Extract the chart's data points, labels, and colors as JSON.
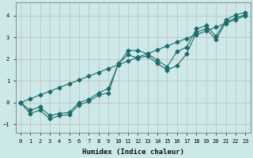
{
  "xlabel": "Humidex (Indice chaleur)",
  "xlim": [
    -0.5,
    23.5
  ],
  "ylim": [
    -1.4,
    4.6
  ],
  "yticks": [
    -1,
    0,
    1,
    2,
    3,
    4
  ],
  "xticks": [
    0,
    1,
    2,
    3,
    4,
    5,
    6,
    7,
    8,
    9,
    10,
    11,
    12,
    13,
    14,
    15,
    16,
    17,
    18,
    19,
    20,
    21,
    22,
    23
  ],
  "bg_color": "#cce8e8",
  "grid_color": "#b8cece",
  "line_color": "#1a6b6b",
  "x": [
    0,
    1,
    2,
    3,
    4,
    5,
    6,
    7,
    8,
    9,
    10,
    11,
    12,
    13,
    14,
    15,
    16,
    17,
    18,
    19,
    20,
    21,
    22,
    23
  ],
  "y_straight": [
    0.0,
    0.17,
    0.35,
    0.52,
    0.7,
    0.87,
    1.04,
    1.22,
    1.39,
    1.57,
    1.74,
    1.91,
    2.09,
    2.26,
    2.43,
    2.61,
    2.78,
    2.96,
    3.13,
    3.3,
    3.48,
    3.65,
    3.83,
    4.0
  ],
  "y_upper": [
    0.0,
    -0.35,
    -0.2,
    -0.6,
    -0.5,
    -0.45,
    0.0,
    0.15,
    0.45,
    0.65,
    1.75,
    2.4,
    2.4,
    2.25,
    1.95,
    1.65,
    2.35,
    2.55,
    3.4,
    3.55,
    3.05,
    3.8,
    4.05,
    4.15
  ],
  "y_lower": [
    0.0,
    -0.5,
    -0.35,
    -0.75,
    -0.6,
    -0.55,
    -0.1,
    0.05,
    0.35,
    0.45,
    1.8,
    2.2,
    2.05,
    2.15,
    1.8,
    1.5,
    1.7,
    2.25,
    3.25,
    3.4,
    2.9,
    3.7,
    3.9,
    4.05
  ],
  "marker": "D",
  "markersize": 2.5,
  "linewidth": 0.8,
  "axis_fontsize": 6.5,
  "tick_fontsize": 5.0
}
